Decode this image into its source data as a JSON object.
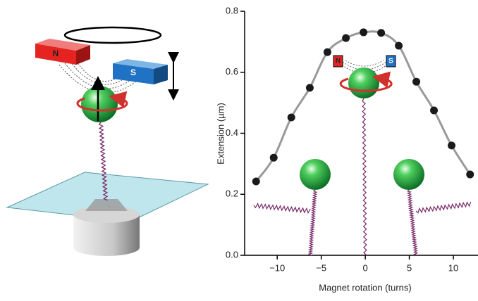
{
  "chart_data": {
    "type": "line",
    "x_label": "Magnet rotation (turns)",
    "y_label": "Extension (µm)",
    "x": [
      -12.4,
      -10.4,
      -8.4,
      -6.3,
      -4.3,
      -2.2,
      -0.2,
      1.8,
      3.8,
      5.8,
      7.8,
      9.8,
      11.9
    ],
    "series": [
      {
        "color": "#1a1a1a",
        "line_color": "#999999",
        "values": [
          0.242,
          0.32,
          0.452,
          0.549,
          0.666,
          0.712,
          0.731,
          0.729,
          0.687,
          0.569,
          0.475,
          0.36,
          0.265
        ]
      }
    ],
    "xlim": [
      -13.7,
      12.8
    ],
    "ylim": [
      0,
      0.8
    ],
    "xticks": [
      {
        "value": -10,
        "label": "−10"
      },
      {
        "value": -5,
        "label": "−5"
      },
      0,
      5,
      10
    ],
    "yticks": [
      {
        "value": 0,
        "label": "0.0"
      },
      0.2,
      0.4,
      0.6,
      0.8
    ]
  },
  "diagram": {
    "magnet_labels": [
      "N",
      "S"
    ],
    "inset_magnet_labels": [
      "N",
      "S"
    ]
  }
}
